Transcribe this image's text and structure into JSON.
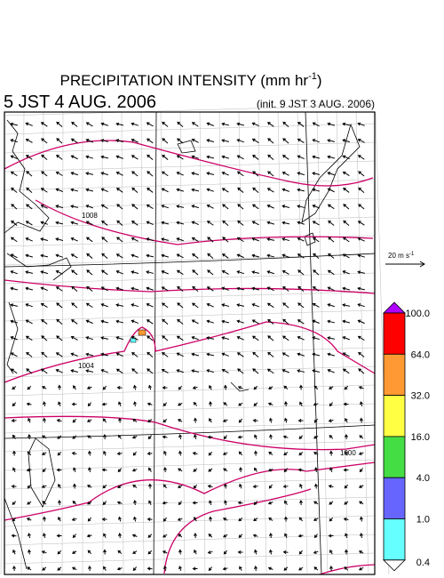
{
  "header": {
    "title": "PRECIPITATION INTENSITY (mm hr",
    "title_sup": "-1",
    "title_end": ")",
    "valid": "5 JST 4 AUG. 2006",
    "init": "(init. 9 JST 3 AUG. 2006)"
  },
  "vector_legend": {
    "label": "20 m s",
    "sup": "-1"
  },
  "isobars": [
    {
      "label": "1008"
    },
    {
      "label": "1004"
    },
    {
      "label": "1000"
    }
  ],
  "colorbar": {
    "labels": [
      "100.0",
      "64.0",
      "32.0",
      "16.0",
      "4.0",
      "1.0",
      "0.4"
    ],
    "colors": [
      "#b000ff",
      "#ff0000",
      "#ff9933",
      "#ffff44",
      "#44dd44",
      "#6666ff",
      "#66ffff",
      "#ffffff"
    ]
  }
}
